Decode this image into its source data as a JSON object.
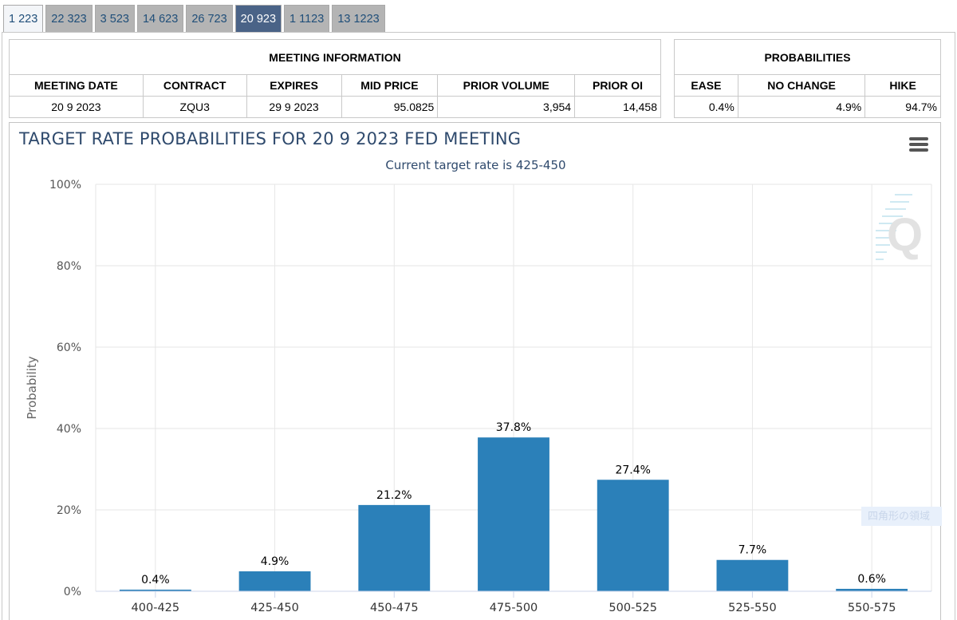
{
  "tabs": [
    "1 223",
    "22 323",
    "3 523",
    "14 623",
    "26 723",
    "20 923",
    "1 1123",
    "13 1223"
  ],
  "active_tab": 5,
  "meeting_info": {
    "group_title": "MEETING INFORMATION",
    "headers": [
      "MEETING DATE",
      "CONTRACT",
      "EXPIRES",
      "MID PRICE",
      "PRIOR VOLUME",
      "PRIOR OI"
    ],
    "values": [
      "20 9 2023",
      "ZQU3",
      "29 9 2023",
      "95.0825",
      "3,954",
      "14,458"
    ]
  },
  "probabilities": {
    "group_title": "PROBABILITIES",
    "headers": [
      "EASE",
      "NO CHANGE",
      "HIKE"
    ],
    "values": [
      "0.4%",
      "4.9%",
      "94.7%"
    ]
  },
  "chart": {
    "title": "TARGET RATE PROBABILITIES FOR 20 9 2023 FED MEETING",
    "subtitle": "Current target rate is 425-450",
    "menu_icon": "hamburger-menu-icon",
    "logo_text": "Q",
    "hint_text": "四角形の領域",
    "bar_color": "#2b80b9"
  },
  "chart_data": {
    "type": "bar",
    "title": "TARGET RATE PROBABILITIES FOR 20 9 2023 FED MEETING",
    "subtitle": "Current target rate is 425-450",
    "xlabel": "",
    "ylabel": "Probability",
    "categories": [
      "400-425",
      "425-450",
      "450-475",
      "475-500",
      "500-525",
      "525-550",
      "550-575"
    ],
    "values": [
      0.4,
      4.9,
      21.2,
      37.8,
      27.4,
      7.7,
      0.6
    ],
    "data_labels": [
      "0.4%",
      "4.9%",
      "21.2%",
      "37.8%",
      "27.4%",
      "7.7%",
      "0.6%"
    ],
    "ylim": [
      0,
      100
    ],
    "yticks": [
      "0%",
      "20%",
      "40%",
      "60%",
      "80%",
      "100%"
    ],
    "grid": true,
    "legend": "none"
  }
}
